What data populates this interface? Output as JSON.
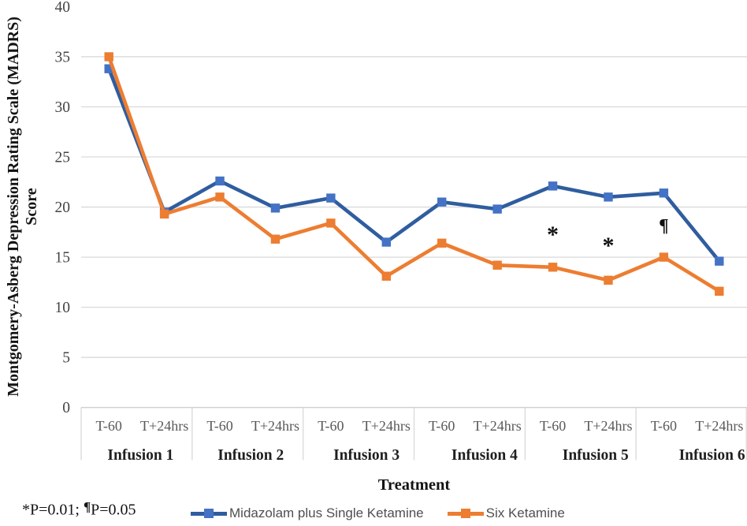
{
  "chart_data": {
    "type": "line",
    "title": "",
    "xlabel": "Treatment",
    "ylabel_lines": [
      "Montgomery-Asberg Depression Rating Scale (MADRS)",
      "Score"
    ],
    "ylim": [
      0,
      40
    ],
    "ytick_step": 5,
    "grid": "horizontal",
    "legend_position": "bottom",
    "groups": [
      "Infusion 1",
      "Infusion 2",
      "Infusion 3",
      "Infusion 4",
      "Infusion 5",
      "Infusion 6"
    ],
    "timepoints_per_group": [
      "T-60",
      "T+24hrs"
    ],
    "categories": [
      "T-60",
      "T+24hrs",
      "T-60",
      "T+24hrs",
      "T-60",
      "T+24hrs",
      "T-60",
      "T+24hrs",
      "T-60",
      "T+24hrs",
      "T-60",
      "T+24hrs"
    ],
    "series": [
      {
        "name": "Midazolam plus Single Ketamine",
        "marker": "square",
        "line_color": "#2F5D9F",
        "marker_color": "#4472C4",
        "values": [
          33.8,
          19.5,
          22.6,
          19.9,
          20.9,
          16.5,
          20.5,
          19.8,
          22.1,
          21.0,
          21.4,
          14.6
        ]
      },
      {
        "name": "Six Ketamine",
        "marker": "square",
        "line_color": "#ED7D31",
        "marker_color": "#ED7D31",
        "values": [
          35.0,
          19.3,
          21.0,
          16.8,
          18.4,
          13.1,
          16.4,
          14.2,
          14.0,
          12.7,
          15.0,
          11.6
        ]
      }
    ],
    "annotations": [
      {
        "text": "*",
        "category_index": 8,
        "y": 17.7
      },
      {
        "text": "*",
        "category_index": 9,
        "y": 16.6
      },
      {
        "text": "¶",
        "category_index": 10,
        "y": 18.2
      }
    ],
    "footnote": {
      "star_part": "*P=0.01;",
      "pilcrow": "¶",
      "rest_part": "P=0.05"
    }
  },
  "colors": {
    "gridline": "#D9D9D9",
    "axis_line": "#CFCFCF",
    "tick_text": "#444444",
    "category_text": "#595959",
    "group_text": "#1f1f1f",
    "annotation_text": "#111111",
    "legend_text": "#4f4f4f"
  }
}
